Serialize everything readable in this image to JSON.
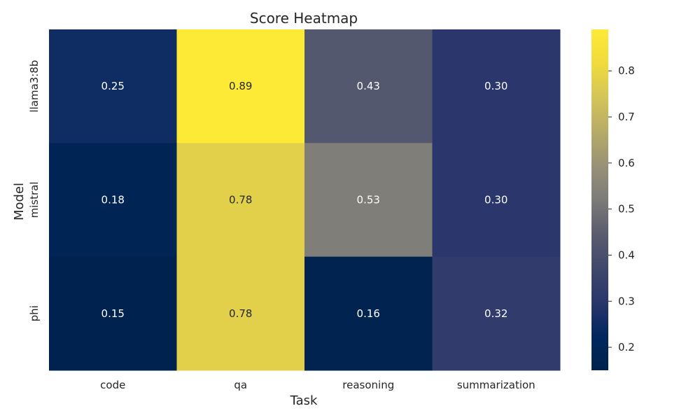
{
  "chart_data": {
    "type": "heatmap",
    "title": "Score Heatmap",
    "xlabel": "Task",
    "ylabel": "Model",
    "x_categories": [
      "code",
      "qa",
      "reasoning",
      "summarization"
    ],
    "y_categories": [
      "llama3:8b",
      "mistral",
      "phi"
    ],
    "values": [
      [
        0.25,
        0.89,
        0.43,
        0.3
      ],
      [
        0.18,
        0.78,
        0.53,
        0.3
      ],
      [
        0.15,
        0.78,
        0.16,
        0.32
      ]
    ],
    "cell_labels": [
      [
        "0.25",
        "0.89",
        "0.43",
        "0.30"
      ],
      [
        "0.18",
        "0.78",
        "0.53",
        "0.30"
      ],
      [
        "0.15",
        "0.78",
        "0.16",
        "0.32"
      ]
    ],
    "colormap": "cividis",
    "vmin": 0.15,
    "vmax": 0.89,
    "colorbar_ticks": [
      0.2,
      0.3,
      0.4,
      0.5,
      0.6,
      0.7,
      0.8
    ],
    "colorbar_tick_labels": [
      "0.2",
      "0.3",
      "0.4",
      "0.5",
      "0.6",
      "0.7",
      "0.8"
    ],
    "grid": false,
    "legend": "colorbar-right"
  }
}
